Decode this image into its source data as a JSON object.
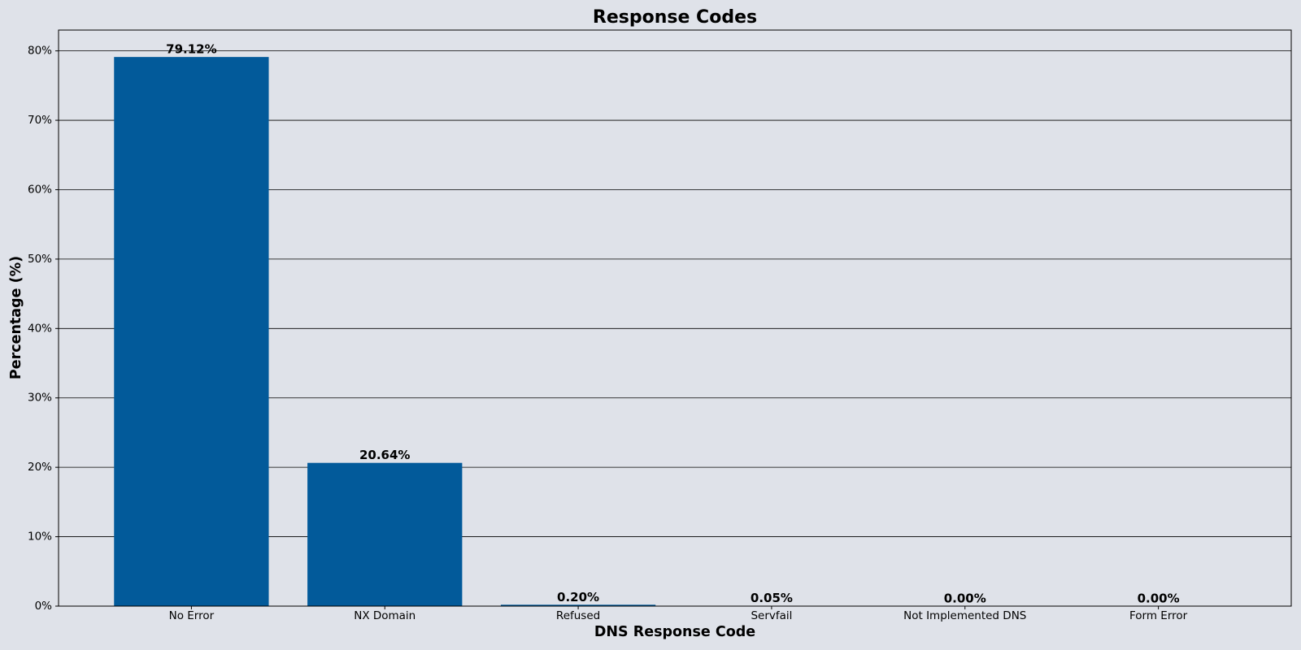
{
  "chart_data": {
    "type": "bar",
    "title": "Response Codes",
    "x_label": "DNS Response Code",
    "y_label": "Percentage (%)",
    "categories": [
      "No Error",
      "NX Domain",
      "Refused",
      "Servfail",
      "Not Implemented DNS",
      "Form Error"
    ],
    "values": [
      79.12,
      20.64,
      0.2,
      0.05,
      0,
      0
    ],
    "value_labels": [
      "79.12%",
      "20.64%",
      "0.20%",
      "0.05%",
      "0.00%",
      "0.00%"
    ],
    "color": "#025a9a",
    "ylim": [
      0,
      83
    ],
    "yticks": [
      {
        "value": 0,
        "label": "0%"
      },
      {
        "value": 10,
        "label": "10%"
      },
      {
        "value": 20,
        "label": "20%"
      },
      {
        "value": 30,
        "label": "30%"
      },
      {
        "value": 40,
        "label": "40%"
      },
      {
        "value": 50,
        "label": "50%"
      },
      {
        "value": 60,
        "label": "60%"
      },
      {
        "value": 70,
        "label": "70%"
      },
      {
        "value": 80,
        "label": "80%"
      }
    ],
    "grid": true
  }
}
